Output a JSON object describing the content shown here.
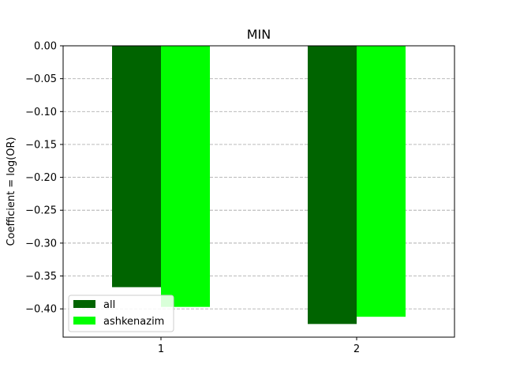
{
  "chart_data": {
    "type": "bar",
    "title": "MIN",
    "xlabel": "",
    "ylabel": "Coefficient = log(OR)",
    "categories": [
      "1",
      "2"
    ],
    "series": [
      {
        "name": "all",
        "color": "#006400",
        "values": [
          -0.367,
          -0.423
        ]
      },
      {
        "name": "ashkenazim",
        "color": "#00ff00",
        "values": [
          -0.397,
          -0.412
        ]
      }
    ],
    "ylim": [
      -0.443,
      0.0
    ],
    "yticks": [
      0.0,
      -0.05,
      -0.1,
      -0.15,
      -0.2,
      -0.25,
      -0.3,
      -0.35,
      -0.4
    ],
    "ytick_labels": [
      "0.00",
      "−0.05",
      "−0.10",
      "−0.15",
      "−0.20",
      "−0.25",
      "−0.30",
      "−0.35",
      "−0.40"
    ],
    "grid": {
      "axis": "y",
      "style": "dashed",
      "color": "#b0b0b0"
    },
    "legend": {
      "position": "lower-left"
    }
  }
}
